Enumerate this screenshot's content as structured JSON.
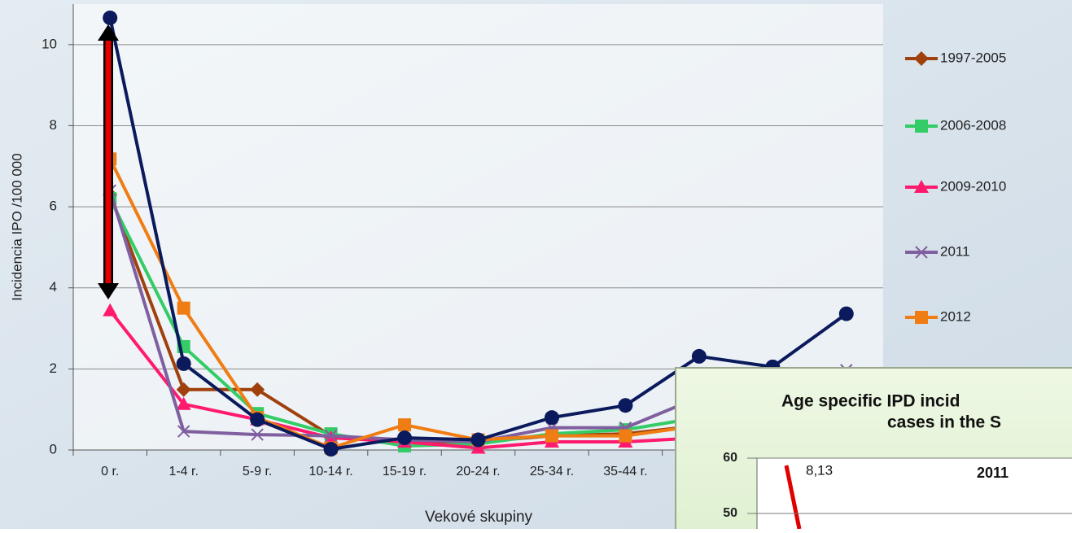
{
  "chart_data": {
    "type": "line",
    "y_label": "Incidencia IPO /100 000",
    "x_label": "Vekové skupiny",
    "categories": [
      "0 r.",
      "1-4 r.",
      "5-9 r.",
      "10-14 r.",
      "15-19 r.",
      "20-24 r.",
      "25-34 r.",
      "35-44 r.",
      null,
      null,
      null
    ],
    "ylim": [
      0,
      11
    ],
    "yticks": [
      0,
      2,
      4,
      6,
      8,
      10
    ],
    "grid": true,
    "legend": "right",
    "series": [
      {
        "name": "1997-2005",
        "color": "#a0410d",
        "marker": "diamond",
        "values": [
          6.3,
          1.49,
          1.49,
          0.35,
          0.2,
          0.2,
          0.35,
          0.4,
          0.6,
          null,
          null
        ]
      },
      {
        "name": "2006-2008",
        "color": "#33cc66",
        "marker": "square",
        "values": [
          6.2,
          2.55,
          0.9,
          0.4,
          0.1,
          0.15,
          0.4,
          0.5,
          0.8,
          null,
          null
        ]
      },
      {
        "name": "2009-2010",
        "color": "#ff1a6e",
        "marker": "triangle",
        "values": [
          3.44,
          1.13,
          0.75,
          0.3,
          0.2,
          0.05,
          0.2,
          0.2,
          0.3,
          null,
          null
        ]
      },
      {
        "name": "2011",
        "color": "#7f5f9f",
        "marker": "x",
        "values": [
          6.4,
          0.46,
          0.38,
          0.35,
          0.25,
          0.2,
          0.55,
          0.55,
          1.3,
          null,
          1.97
        ]
      },
      {
        "name": "2012",
        "color": "#f07d14",
        "marker": "square",
        "values": [
          7.18,
          3.5,
          0.8,
          0.05,
          0.62,
          0.25,
          0.35,
          0.35,
          0.6,
          null,
          null
        ]
      },
      {
        "color": "#0a1a5c",
        "marker": "circle",
        "values": [
          10.66,
          2.13,
          0.75,
          0.02,
          0.3,
          0.25,
          0.8,
          1.1,
          2.31,
          2.05,
          3.36
        ]
      }
    ]
  },
  "inset": {
    "title_lines": [
      "Age specific IPD incid",
      "cases in the S"
    ],
    "yticks": [
      50,
      60
    ],
    "annotation": "8,13",
    "series_label": "2011"
  }
}
